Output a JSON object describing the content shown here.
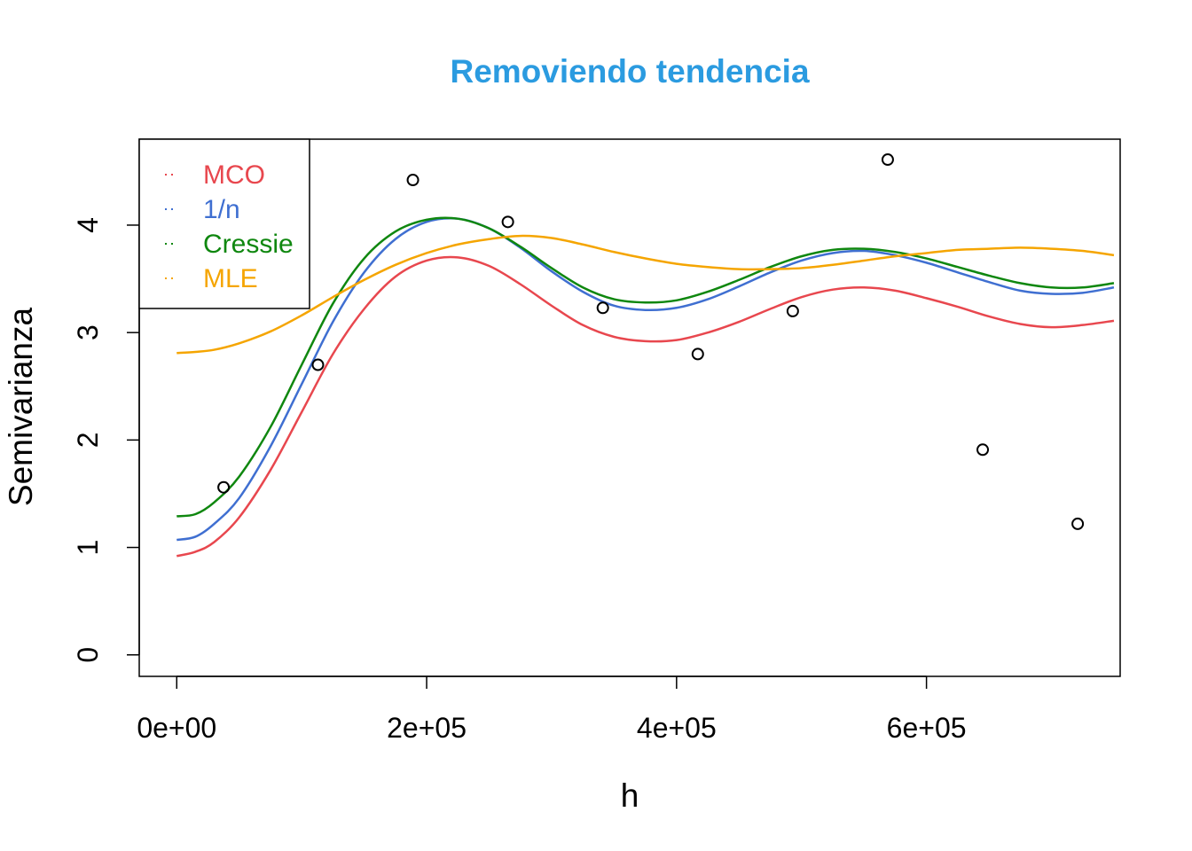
{
  "chart_data": {
    "type": "line",
    "title": "Removiendo tendencia",
    "title_color": "#2b9be0",
    "xlabel": "h",
    "ylabel": "Semivarianza",
    "xlim": [
      -30000,
      755000
    ],
    "ylim": [
      -0.2,
      4.8
    ],
    "x_ticks": [
      0,
      200000,
      400000,
      600000
    ],
    "x_tick_labels": [
      "0e+00",
      "2e+05",
      "4e+05",
      "6e+05"
    ],
    "y_ticks": [
      0,
      1,
      2,
      3,
      4
    ],
    "y_tick_labels": [
      "0",
      "1",
      "2",
      "3",
      "4"
    ],
    "grid": false,
    "legend_position": "top-left",
    "points": {
      "x": [
        37500,
        113000,
        189000,
        265000,
        341000,
        417000,
        493000,
        569000,
        645000,
        721000
      ],
      "y": [
        1.56,
        2.7,
        4.42,
        4.03,
        3.23,
        2.8,
        3.2,
        4.61,
        1.91,
        1.22
      ]
    },
    "series": [
      {
        "name": "MCO",
        "color": "#e8474e",
        "x": [
          0,
          15000,
          30000,
          50000,
          75000,
          100000,
          125000,
          150000,
          175000,
          200000,
          225000,
          250000,
          275000,
          300000,
          325000,
          350000,
          375000,
          400000,
          425000,
          450000,
          475000,
          500000,
          525000,
          550000,
          575000,
          600000,
          625000,
          650000,
          675000,
          700000,
          725000,
          750000
        ],
        "y": [
          0.92,
          0.96,
          1.05,
          1.28,
          1.72,
          2.26,
          2.8,
          3.22,
          3.52,
          3.67,
          3.7,
          3.62,
          3.45,
          3.25,
          3.07,
          2.96,
          2.92,
          2.93,
          3.0,
          3.1,
          3.22,
          3.33,
          3.4,
          3.42,
          3.39,
          3.32,
          3.24,
          3.15,
          3.08,
          3.05,
          3.07,
          3.11
        ]
      },
      {
        "name": "1/n",
        "color": "#3f6fd1",
        "x": [
          0,
          15000,
          30000,
          50000,
          75000,
          100000,
          125000,
          150000,
          175000,
          200000,
          225000,
          250000,
          275000,
          300000,
          325000,
          350000,
          375000,
          400000,
          425000,
          450000,
          475000,
          500000,
          525000,
          550000,
          575000,
          600000,
          625000,
          650000,
          675000,
          700000,
          725000,
          750000
        ],
        "y": [
          1.07,
          1.1,
          1.22,
          1.46,
          1.94,
          2.52,
          3.1,
          3.56,
          3.87,
          4.03,
          4.06,
          3.97,
          3.79,
          3.57,
          3.38,
          3.25,
          3.21,
          3.23,
          3.31,
          3.43,
          3.56,
          3.67,
          3.74,
          3.76,
          3.72,
          3.65,
          3.56,
          3.47,
          3.39,
          3.36,
          3.37,
          3.42
        ]
      },
      {
        "name": "Cressie",
        "color": "#0f870f",
        "x": [
          0,
          15000,
          30000,
          50000,
          75000,
          100000,
          125000,
          150000,
          175000,
          200000,
          225000,
          250000,
          275000,
          300000,
          325000,
          350000,
          375000,
          400000,
          425000,
          450000,
          475000,
          500000,
          525000,
          550000,
          575000,
          600000,
          625000,
          650000,
          675000,
          700000,
          725000,
          750000
        ],
        "y": [
          1.29,
          1.31,
          1.42,
          1.66,
          2.12,
          2.7,
          3.27,
          3.69,
          3.94,
          4.05,
          4.06,
          3.97,
          3.8,
          3.6,
          3.42,
          3.31,
          3.28,
          3.3,
          3.38,
          3.49,
          3.61,
          3.71,
          3.77,
          3.78,
          3.75,
          3.69,
          3.61,
          3.53,
          3.46,
          3.42,
          3.42,
          3.46
        ]
      },
      {
        "name": "MLE",
        "color": "#f5a500",
        "x": [
          0,
          15000,
          30000,
          50000,
          75000,
          100000,
          125000,
          150000,
          175000,
          200000,
          225000,
          250000,
          275000,
          300000,
          325000,
          350000,
          375000,
          400000,
          425000,
          450000,
          475000,
          500000,
          525000,
          550000,
          575000,
          600000,
          625000,
          650000,
          675000,
          700000,
          725000,
          750000
        ],
        "y": [
          2.81,
          2.82,
          2.84,
          2.9,
          3.01,
          3.16,
          3.33,
          3.49,
          3.63,
          3.74,
          3.82,
          3.87,
          3.9,
          3.88,
          3.82,
          3.75,
          3.69,
          3.64,
          3.61,
          3.59,
          3.59,
          3.6,
          3.63,
          3.67,
          3.71,
          3.74,
          3.77,
          3.78,
          3.79,
          3.78,
          3.76,
          3.72
        ]
      }
    ]
  }
}
